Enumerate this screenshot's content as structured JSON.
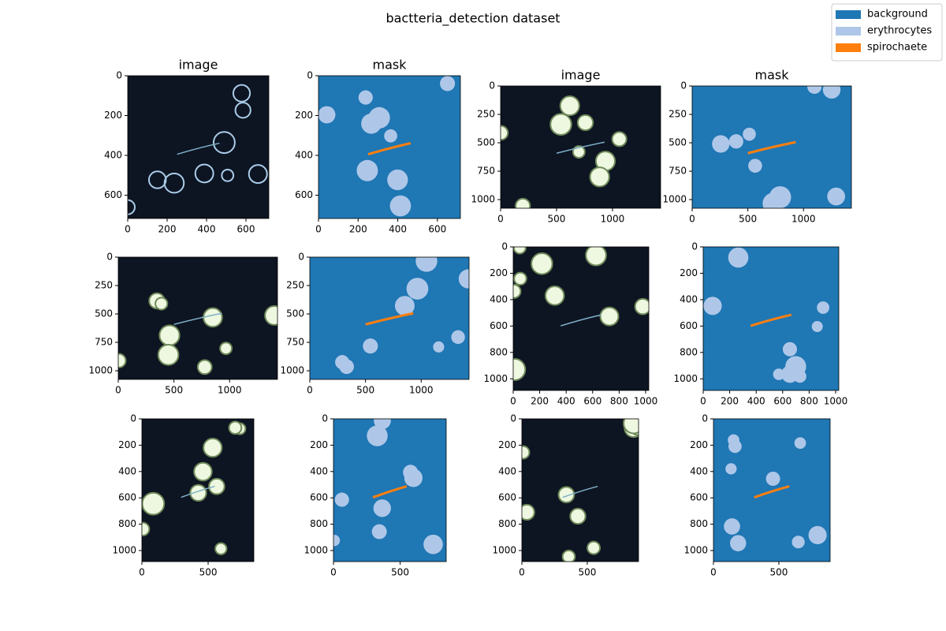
{
  "title": "bactteria_detection dataset",
  "legend": {
    "items": [
      {
        "name": "background",
        "color": "#1f77b4"
      },
      {
        "name": "erythrocytes",
        "color": "#aec7e8"
      },
      {
        "name": "spirochaete",
        "color": "#ff7f0e"
      }
    ]
  },
  "chart_data": [
    {
      "type": "image",
      "title": "image",
      "xlim": [
        0,
        716
      ],
      "ylim": [
        717,
        0
      ],
      "xticks": [
        0,
        200,
        400,
        600
      ],
      "yticks": [
        0,
        200,
        400,
        600
      ]
    },
    {
      "type": "mask",
      "title": "mask",
      "xlim": [
        0,
        716
      ],
      "ylim": [
        717,
        0
      ],
      "xticks": [
        0,
        200,
        400,
        600
      ],
      "yticks": [
        0,
        200,
        400,
        600
      ]
    },
    {
      "type": "image",
      "title": "image",
      "xlim": [
        0,
        1430
      ],
      "ylim": [
        1076,
        0
      ],
      "xticks": [
        0,
        500,
        1000
      ],
      "yticks": [
        0,
        250,
        500,
        750,
        1000
      ]
    },
    {
      "type": "mask",
      "title": "mask",
      "xlim": [
        0,
        1430
      ],
      "ylim": [
        1076,
        0
      ],
      "xticks": [
        0,
        500,
        1000
      ],
      "yticks": [
        0,
        250,
        500,
        750,
        1000
      ]
    },
    {
      "type": "image",
      "xlim": [
        0,
        1430
      ],
      "ylim": [
        1076,
        0
      ],
      "xticks": [
        0,
        500,
        1000
      ],
      "yticks": [
        0,
        250,
        500,
        750,
        1000
      ]
    },
    {
      "type": "mask",
      "xlim": [
        0,
        1430
      ],
      "ylim": [
        1076,
        0
      ],
      "xticks": [
        0,
        500,
        1000
      ],
      "yticks": [
        0,
        250,
        500,
        750,
        1000
      ]
    },
    {
      "type": "image",
      "xlim": [
        0,
        1024
      ],
      "ylim": [
        1088,
        0
      ],
      "xticks": [
        0,
        200,
        400,
        600,
        800,
        1000
      ],
      "yticks": [
        0,
        200,
        400,
        600,
        800,
        1000
      ]
    },
    {
      "type": "mask",
      "xlim": [
        0,
        1024
      ],
      "ylim": [
        1088,
        0
      ],
      "xticks": [
        0,
        200,
        400,
        600,
        800,
        1000
      ],
      "yticks": [
        0,
        200,
        400,
        600,
        800,
        1000
      ]
    },
    {
      "type": "image",
      "xlim": [
        0,
        845
      ],
      "ylim": [
        1084,
        0
      ],
      "xticks": [
        0,
        500
      ],
      "yticks": [
        0,
        200,
        400,
        600,
        800,
        1000
      ]
    },
    {
      "type": "mask",
      "xlim": [
        0,
        845
      ],
      "ylim": [
        1084,
        0
      ],
      "xticks": [
        0,
        500
      ],
      "yticks": [
        0,
        200,
        400,
        600,
        800,
        1000
      ]
    },
    {
      "type": "image",
      "xlim": [
        0,
        892
      ],
      "ylim": [
        1084,
        0
      ],
      "xticks": [
        0,
        500
      ],
      "yticks": [
        0,
        200,
        400,
        600,
        800,
        1000
      ]
    },
    {
      "type": "mask",
      "xlim": [
        0,
        892
      ],
      "ylim": [
        1084,
        0
      ],
      "xticks": [
        0,
        500
      ],
      "yticks": [
        0,
        200,
        400,
        600,
        800,
        1000
      ]
    }
  ]
}
